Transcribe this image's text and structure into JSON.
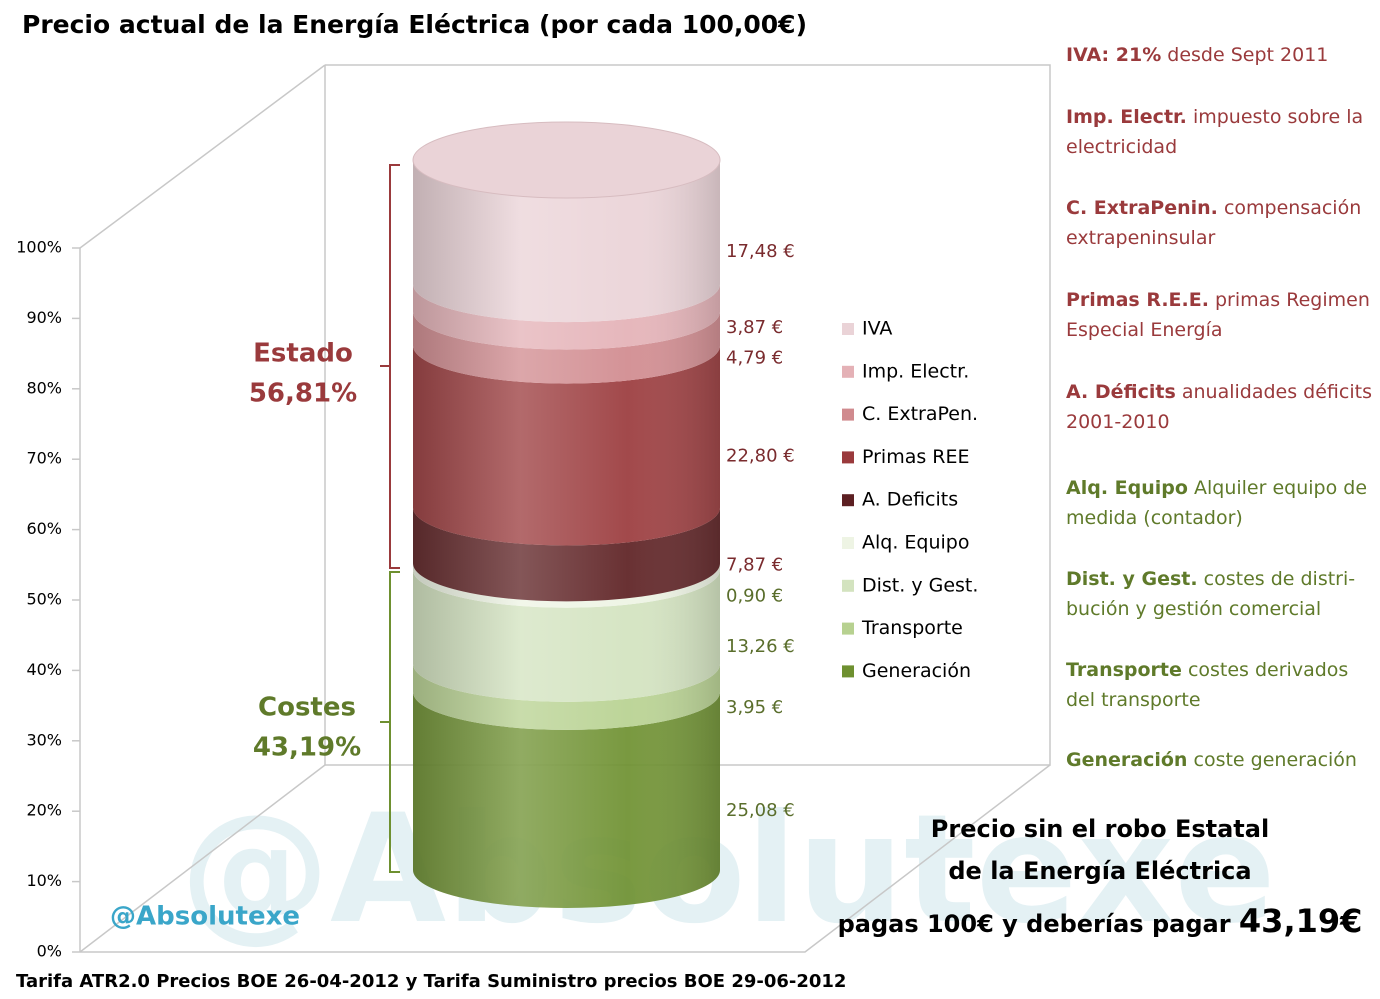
{
  "chart_data": {
    "type": "stacked_cylinder",
    "title": "Precio actual de la Energía Eléctrica (por cada 100,00€)",
    "categories": [
      null
    ],
    "series": [
      {
        "name": "Generación",
        "color": "#6e9030",
        "values": [
          25.08
        ],
        "value_labels": [
          "25,08 €"
        ]
      },
      {
        "name": "Transporte",
        "color": "#b7d190",
        "values": [
          3.95
        ],
        "value_labels": [
          "3,95 €"
        ]
      },
      {
        "name": "Dist. y Gest.",
        "color": "#d3e3bf",
        "values": [
          13.26
        ],
        "value_labels": [
          "13,26 €"
        ]
      },
      {
        "name": "Alq. Equipo",
        "color": "#eef4e4",
        "values": [
          0.9
        ],
        "value_labels": [
          "0,90 €"
        ]
      },
      {
        "name": "A. Deficits",
        "color": "#5c1f22",
        "values": [
          7.87
        ],
        "value_labels": [
          "7,87 €"
        ]
      },
      {
        "name": "Primas REE",
        "color": "#9a3a3c",
        "values": [
          22.8
        ],
        "value_labels": [
          "22,80 €"
        ]
      },
      {
        "name": "C. ExtraPen.",
        "color": "#d08a8e",
        "values": [
          4.79
        ],
        "value_labels": [
          "4,79 €"
        ]
      },
      {
        "name": "Imp. Electr.",
        "color": "#e4b1b6",
        "values": [
          3.87
        ],
        "value_labels": [
          "3,87 €"
        ]
      },
      {
        "name": "IVA",
        "color": "#ead3d7",
        "values": [
          17.48
        ],
        "value_labels": [
          "17,48 €"
        ]
      }
    ],
    "ylim": [
      0,
      100
    ],
    "yticks": [
      {
        "value": 0,
        "label": "0%"
      },
      {
        "value": 10,
        "label": "10%"
      },
      {
        "value": 20,
        "label": "20%"
      },
      {
        "value": 30,
        "label": "30%"
      },
      {
        "value": 40,
        "label": "40%"
      },
      {
        "value": 50,
        "label": "50%"
      },
      {
        "value": 60,
        "label": "60%"
      },
      {
        "value": 70,
        "label": "70%"
      },
      {
        "value": 80,
        "label": "80%"
      },
      {
        "value": 90,
        "label": "90%"
      },
      {
        "value": 100,
        "label": "100%"
      }
    ],
    "groups": [
      {
        "name": "Estado",
        "share": "56,81%"
      },
      {
        "name": "Costes",
        "share": "43,19%"
      }
    ],
    "footer": "Tarifa ATR2.0 Precios BOE 26-04-2012 y Tarifa Suministro precios BOE 29-06-2012",
    "watermark": "@Absolutexe"
  },
  "notes": [
    {
      "term": "IVA: 21%",
      "text": "desde Sept 2011"
    },
    {
      "term": "Imp. Electr.",
      "text": "impuesto sobre la electricidad"
    },
    {
      "term": "C. ExtraPenin.",
      "text": "compensación extrapeninsular"
    },
    {
      "term": "Primas R.E.E.",
      "text": "primas Regimen Especial Energía"
    },
    {
      "term": "A. Déficits",
      "text": "anualidades déficits 2001-2010"
    },
    {
      "term": "Alq. Equipo",
      "text": "Alquiler equipo de medida (contador)"
    },
    {
      "term": "Dist. y Gest.",
      "text": "costes de distri-bución y gestión comercial"
    },
    {
      "term": "Transporte",
      "text": "costes derivados del transporte"
    },
    {
      "term": "Generación",
      "text": "coste generación"
    }
  ],
  "summary": {
    "line1": "Precio sin el robo Estatal",
    "line2": "de la Energía Eléctrica",
    "line3": "pagas 100€ y deberías pagar",
    "amount": "43,19€"
  }
}
